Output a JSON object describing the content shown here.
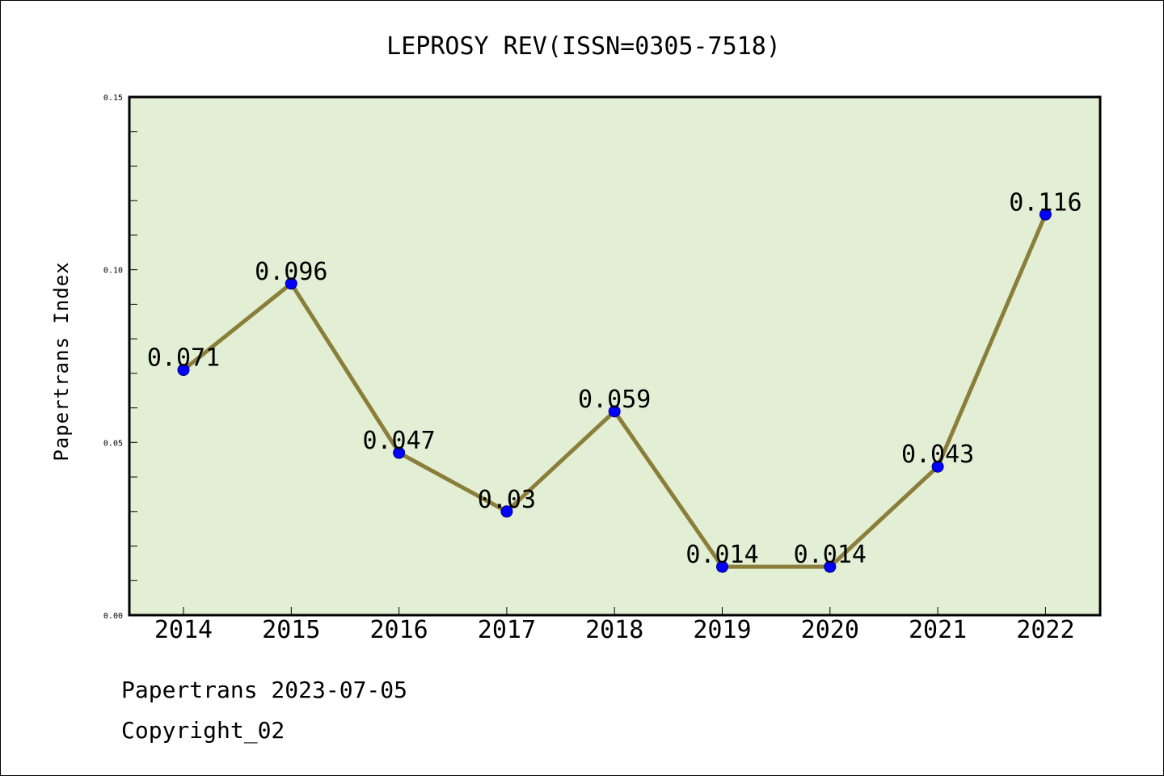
{
  "chart_data": {
    "type": "line",
    "title": "LEPROSY REV(ISSN=0305-7518)",
    "xlabel": "",
    "ylabel": "Papertrans Index",
    "categories": [
      "2014",
      "2015",
      "2016",
      "2017",
      "2018",
      "2019",
      "2020",
      "2021",
      "2022"
    ],
    "values": [
      0.071,
      0.096,
      0.047,
      0.03,
      0.059,
      0.014,
      0.014,
      0.043,
      0.116
    ],
    "data_labels": [
      "0.071",
      "0.096",
      "0.047",
      "0.03",
      "0.059",
      "0.014",
      "0.014",
      "0.043",
      "0.116"
    ],
    "ylim": [
      0,
      0.15
    ],
    "yticks": [
      "0.00",
      "0.05",
      "0.10",
      "0.15"
    ],
    "grid": false,
    "legend": "none",
    "colors": {
      "plot_background": "#e2efd4",
      "line": "#8b7d3a",
      "marker": "#0000ff",
      "axis": "#000000"
    }
  },
  "footer": {
    "line1": "Papertrans 2023-07-05",
    "line2": "Copyright_02"
  }
}
